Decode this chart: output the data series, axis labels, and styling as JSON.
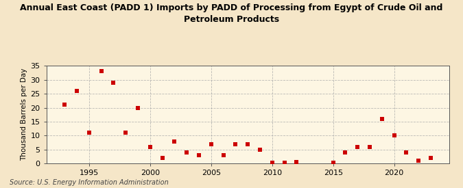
{
  "title": "Annual East Coast (PADD 1) Imports by PADD of Processing from Egypt of Crude Oil and\nPetroleum Products",
  "ylabel": "Thousand Barrels per Day",
  "source": "Source: U.S. Energy Information Administration",
  "background_color": "#f5e6c8",
  "plot_bg_color": "#fdf6e3",
  "marker_color": "#cc0000",
  "grid_color": "#aaaaaa",
  "years": [
    1993,
    1994,
    1995,
    1996,
    1997,
    1998,
    1999,
    2000,
    2001,
    2002,
    2003,
    2004,
    2005,
    2006,
    2007,
    2008,
    2009,
    2010,
    2011,
    2012,
    2015,
    2016,
    2017,
    2018,
    2019,
    2020,
    2021,
    2022,
    2023
  ],
  "values": [
    21,
    26,
    11,
    33,
    29,
    11,
    20,
    6,
    2,
    8,
    4,
    3,
    7,
    3,
    7,
    7,
    5,
    0.3,
    0.3,
    0.5,
    0.3,
    4,
    6,
    6,
    16,
    10,
    4,
    1,
    2
  ],
  "ylim": [
    0,
    35
  ],
  "yticks": [
    0,
    5,
    10,
    15,
    20,
    25,
    30,
    35
  ],
  "xlim": [
    1991.5,
    2024.5
  ],
  "xticks": [
    1995,
    2000,
    2005,
    2010,
    2015,
    2020
  ],
  "title_fontsize": 9,
  "tick_fontsize": 8,
  "ylabel_fontsize": 7.5,
  "source_fontsize": 7
}
